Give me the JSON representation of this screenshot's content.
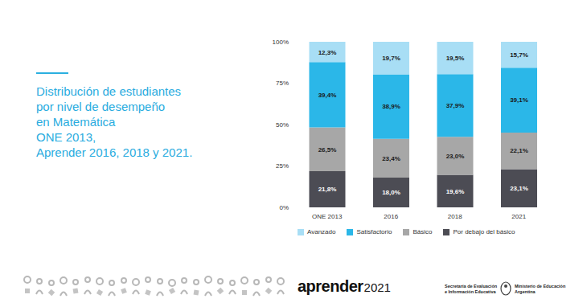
{
  "chart_data": {
    "type": "bar",
    "title": "Distribución de estudiantes\npor nivel de desempeño\nen Matemática\nONE 2013,\nAprender 2016, 2018 y 2021.",
    "categories": [
      "ONE 2013",
      "2016",
      "2018",
      "2021"
    ],
    "series": [
      {
        "name": "Avanzado",
        "color": "#a8def5",
        "values": [
          12.3,
          19.7,
          19.5,
          15.7
        ],
        "value_labels": [
          "12,3%",
          "19,7%",
          "19,5%",
          "15,7%"
        ]
      },
      {
        "name": "Satisfactorio",
        "color": "#2bb7e8",
        "values": [
          39.4,
          38.9,
          37.9,
          39.1
        ],
        "value_labels": [
          "39,4%",
          "38,9%",
          "37,9%",
          "39,1%"
        ]
      },
      {
        "name": "Básico",
        "color": "#a7a7a7",
        "values": [
          26.5,
          23.4,
          23.0,
          22.1
        ],
        "value_labels": [
          "26,5%",
          "23,4%",
          "23,0%",
          "22,1%"
        ]
      },
      {
        "name": "Por debajo del básico",
        "color": "#4c4c54",
        "values": [
          21.8,
          18.0,
          19.6,
          23.1
        ],
        "value_labels": [
          "21,8%",
          "18,0%",
          "19,6%",
          "23,1%"
        ]
      }
    ],
    "ylim": [
      0,
      100
    ],
    "yticks": [
      {
        "value": 0,
        "label": "0%"
      },
      {
        "value": 25,
        "label": "25%"
      },
      {
        "value": 50,
        "label": "50%"
      },
      {
        "value": 75,
        "label": "75%"
      },
      {
        "value": 100,
        "label": "100%"
      }
    ],
    "stacked": true,
    "data_labels": true,
    "grid": false,
    "legend": "bottom"
  },
  "footer": {
    "logo": "aprender",
    "year": "2021",
    "secretaria": "Secretaría de Evaluación\ne Información Educativa",
    "ministerio": "Ministerio de Educación\nArgentina"
  }
}
